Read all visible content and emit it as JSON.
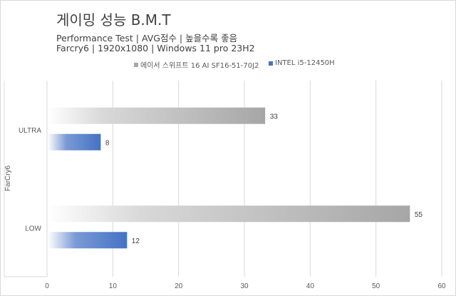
{
  "chart_data": {
    "type": "bar",
    "orientation": "horizontal",
    "title": "게이밍 성능 B.M.T",
    "subtitles": [
      "Performance Test | AVG점수 | 높을수록 좋음",
      "Farcry6 | 1920x1080 | Windows 11 pro 23H2"
    ],
    "group_label": "FarCry6",
    "categories": [
      "ULTRA",
      "LOW"
    ],
    "series": [
      {
        "name": "에이서 스위프트 16 AI SF16-51-70J2",
        "color": "#a6a6a6",
        "values": [
          33,
          55
        ]
      },
      {
        "name": "INTEL i5-12450H",
        "color": "#4472c4",
        "values": [
          8,
          12
        ]
      }
    ],
    "xlim": [
      0,
      60
    ],
    "xticks": [
      "0",
      "10",
      "20",
      "30",
      "40",
      "50",
      "60"
    ],
    "legend": "top",
    "grid": true
  }
}
